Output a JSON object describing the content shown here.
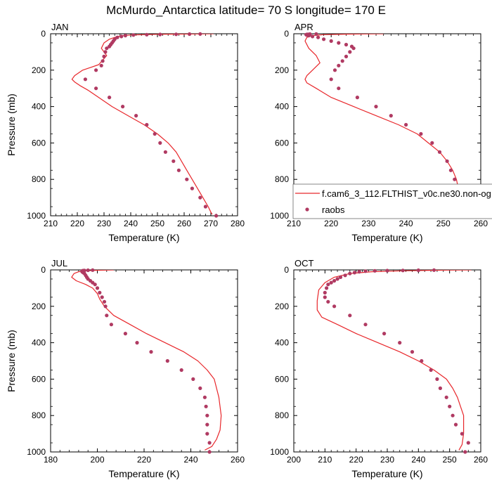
{
  "figure": {
    "title": "McMurdo_Antarctica  latitude= 70 S longitude= 170 E",
    "xlabel": "Temperature (K)",
    "ylabel": "Pressure (mb)"
  },
  "legend": {
    "model_label": "f.cam6_3_112.FLTHIST_v0c.ne30.non-og",
    "obs_label": "raobs"
  },
  "colors": {
    "model": "#e8272b",
    "obs": "#b03a62"
  },
  "chart_data": [
    {
      "type": "scatter",
      "panel": "JAN",
      "xlim": [
        210,
        280
      ],
      "ylim": [
        1000,
        0
      ],
      "xticks": [
        210,
        220,
        230,
        240,
        250,
        260,
        270,
        280
      ],
      "yticks": [
        0,
        200,
        400,
        600,
        800,
        1000
      ],
      "series": [
        {
          "role": "model",
          "x": [
            271,
            250,
            240,
            236,
            234,
            232,
            230,
            229,
            231,
            228,
            222,
            219,
            218,
            219,
            221,
            224,
            228,
            233,
            239,
            245,
            250,
            254,
            257,
            259,
            261,
            263,
            265,
            267,
            269,
            270,
            270.5
          ],
          "y": [
            0,
            3,
            7,
            12,
            20,
            30,
            50,
            80,
            120,
            170,
            200,
            230,
            250,
            265,
            285,
            310,
            350,
            400,
            450,
            500,
            550,
            600,
            650,
            700,
            750,
            800,
            850,
            900,
            950,
            980,
            992
          ]
        },
        {
          "role": "obs",
          "x": [
            272,
            268,
            266,
            263,
            261,
            258,
            256,
            253,
            251,
            249,
            246,
            242,
            237,
            232,
            227,
            223,
            227,
            229,
            229.5,
            230,
            230.5,
            231,
            232,
            232.5,
            233,
            233.5,
            234,
            235,
            236.5,
            238,
            241,
            246,
            251,
            257,
            262,
            266
          ],
          "y": [
            1000,
            950,
            900,
            850,
            800,
            750,
            700,
            650,
            600,
            550,
            500,
            450,
            400,
            350,
            300,
            250,
            200,
            175,
            150,
            125,
            100,
            80,
            70,
            60,
            50,
            40,
            30,
            20,
            15,
            10,
            7,
            5,
            4,
            3,
            2,
            1
          ]
        }
      ]
    },
    {
      "type": "scatter",
      "panel": "APR",
      "xlim": [
        210,
        260
      ],
      "ylim": [
        1000,
        0
      ],
      "xticks": [
        210,
        220,
        230,
        240,
        250,
        260
      ],
      "yticks": [
        0,
        200,
        400,
        600,
        800,
        1000
      ],
      "series": [
        {
          "role": "model",
          "x": [
            234,
            225,
            218,
            215,
            213.5,
            213,
            214,
            216,
            217,
            215,
            213.5,
            213,
            213.5,
            216,
            220,
            226,
            232,
            238,
            243,
            246,
            249,
            251,
            252.5,
            253.5,
            254,
            254,
            253.5
          ],
          "y": [
            0,
            2,
            5,
            10,
            20,
            40,
            80,
            120,
            160,
            200,
            230,
            250,
            270,
            300,
            350,
            400,
            450,
            500,
            550,
            600,
            650,
            700,
            750,
            800,
            850,
            950,
            990
          ]
        },
        {
          "role": "obs",
          "x": [
            256,
            256,
            254,
            254,
            253,
            252,
            251,
            249,
            247,
            244,
            240,
            236,
            232,
            227,
            222,
            220,
            221,
            222,
            223,
            224,
            225,
            226,
            225.5,
            224,
            222,
            220,
            218,
            216.5,
            215,
            214,
            213.5,
            213.3,
            213.5,
            213.8,
            214.3,
            216
          ],
          "y": [
            1000,
            950,
            900,
            850,
            800,
            750,
            700,
            650,
            600,
            550,
            500,
            450,
            400,
            350,
            300,
            250,
            200,
            175,
            150,
            125,
            100,
            80,
            70,
            60,
            50,
            40,
            30,
            20,
            15,
            10,
            7,
            5,
            4,
            3,
            2,
            1
          ]
        }
      ]
    },
    {
      "type": "scatter",
      "panel": "JUL",
      "xlim": [
        180,
        260
      ],
      "ylim": [
        1000,
        0
      ],
      "xticks": [
        180,
        200,
        220,
        240,
        260
      ],
      "yticks": [
        0,
        200,
        400,
        600,
        800,
        1000
      ],
      "series": [
        {
          "role": "model",
          "x": [
            207,
            200,
            195,
            192,
            190,
            189,
            191,
            195,
            198,
            200,
            201,
            203,
            207,
            214,
            221,
            229,
            237,
            243,
            247,
            250,
            252,
            253,
            252.5,
            251,
            249,
            246
          ],
          "y": [
            0,
            2,
            5,
            10,
            20,
            40,
            60,
            80,
            100,
            130,
            160,
            200,
            250,
            300,
            350,
            400,
            450,
            500,
            550,
            600,
            700,
            800,
            880,
            930,
            970,
            990
          ]
        },
        {
          "role": "obs",
          "x": [
            248,
            248,
            247,
            247,
            247,
            246.5,
            246,
            244,
            241,
            236,
            230,
            223,
            217,
            212,
            206,
            204,
            203.5,
            203,
            202,
            201,
            200,
            199,
            198,
            197,
            196,
            195.5,
            195,
            194.5,
            194,
            193.5,
            193.5,
            193.5,
            194,
            194.5,
            196,
            198
          ],
          "y": [
            1000,
            950,
            900,
            850,
            800,
            750,
            700,
            650,
            600,
            550,
            500,
            450,
            400,
            350,
            300,
            250,
            200,
            175,
            150,
            125,
            100,
            80,
            70,
            60,
            50,
            40,
            30,
            20,
            15,
            10,
            7,
            5,
            4,
            3,
            2,
            1
          ]
        }
      ]
    },
    {
      "type": "scatter",
      "panel": "OCT",
      "xlim": [
        200,
        260
      ],
      "ylim": [
        1000,
        0
      ],
      "xticks": [
        200,
        210,
        220,
        230,
        240,
        250,
        260
      ],
      "yticks": [
        0,
        200,
        400,
        600,
        800,
        1000
      ],
      "series": [
        {
          "role": "model",
          "x": [
            257,
            245,
            235,
            225,
            218,
            213,
            210,
            208,
            207.5,
            207.5,
            209,
            214,
            220,
            227,
            234,
            240,
            245,
            249,
            251,
            252.5,
            253.5,
            254.5,
            254.5,
            254,
            253
          ],
          "y": [
            0,
            2,
            5,
            10,
            20,
            40,
            70,
            110,
            170,
            220,
            260,
            300,
            350,
            400,
            450,
            500,
            550,
            600,
            650,
            700,
            750,
            800,
            900,
            960,
            990
          ]
        },
        {
          "role": "obs",
          "x": [
            255,
            256,
            254,
            252,
            251,
            250,
            249,
            247,
            246,
            244,
            241,
            238,
            234,
            229,
            223,
            218,
            213,
            211,
            210,
            210,
            210.5,
            211,
            212,
            213,
            214,
            215,
            216.5,
            218,
            219.5,
            221,
            223,
            226,
            230,
            235,
            240,
            245
          ],
          "y": [
            1000,
            950,
            900,
            850,
            800,
            750,
            700,
            650,
            600,
            550,
            500,
            450,
            400,
            350,
            300,
            250,
            200,
            175,
            150,
            125,
            100,
            80,
            70,
            60,
            50,
            40,
            30,
            20,
            15,
            10,
            7,
            5,
            4,
            3,
            2,
            1
          ]
        }
      ]
    }
  ]
}
